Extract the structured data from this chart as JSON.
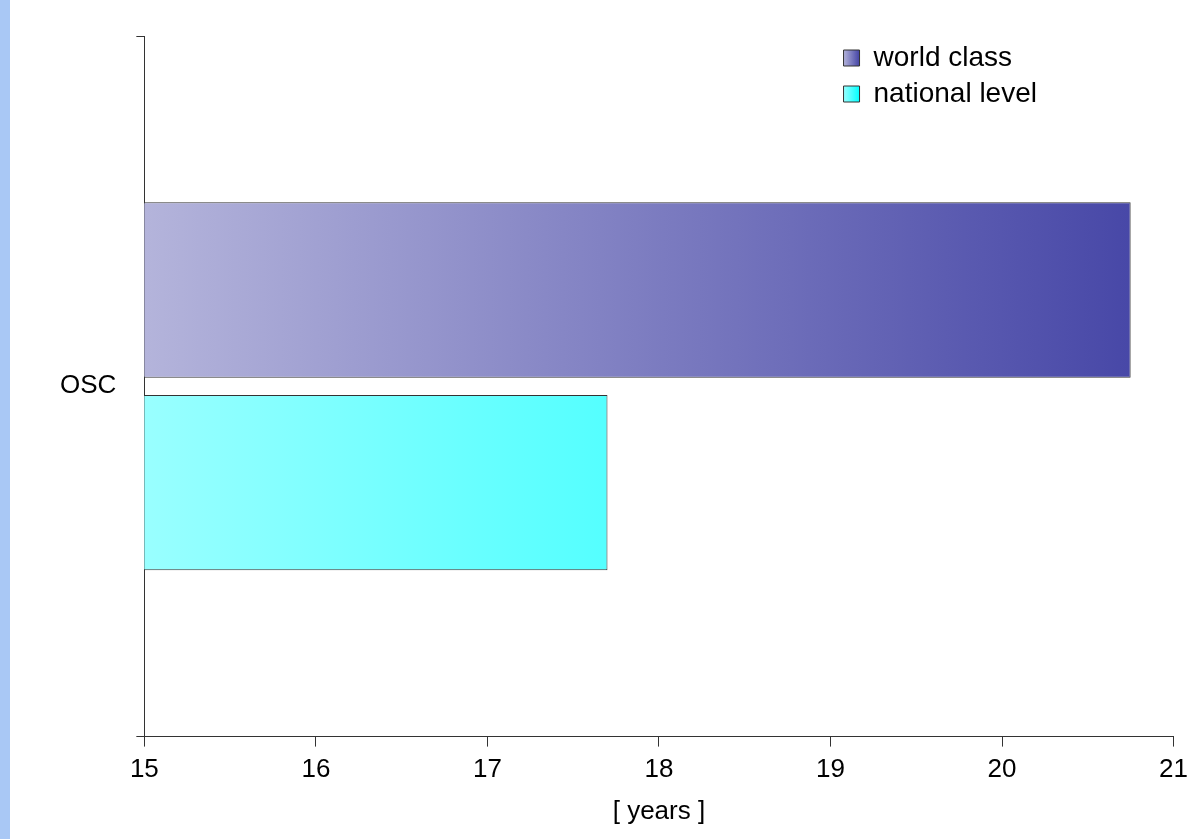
{
  "chart_data": {
    "type": "bar",
    "orientation": "horizontal",
    "xlabel": "[ years ]",
    "categories": [
      "OSC"
    ],
    "series": [
      {
        "name": "world class",
        "color": "#4343a5",
        "values": [
          20.75
        ]
      },
      {
        "name": "national level",
        "color": "#00ffff",
        "values": [
          17.7
        ]
      }
    ],
    "xlim": [
      15,
      21
    ],
    "xticks": [
      15,
      16,
      17,
      18,
      19,
      20,
      21
    ],
    "grid": false,
    "legend": "top right"
  }
}
